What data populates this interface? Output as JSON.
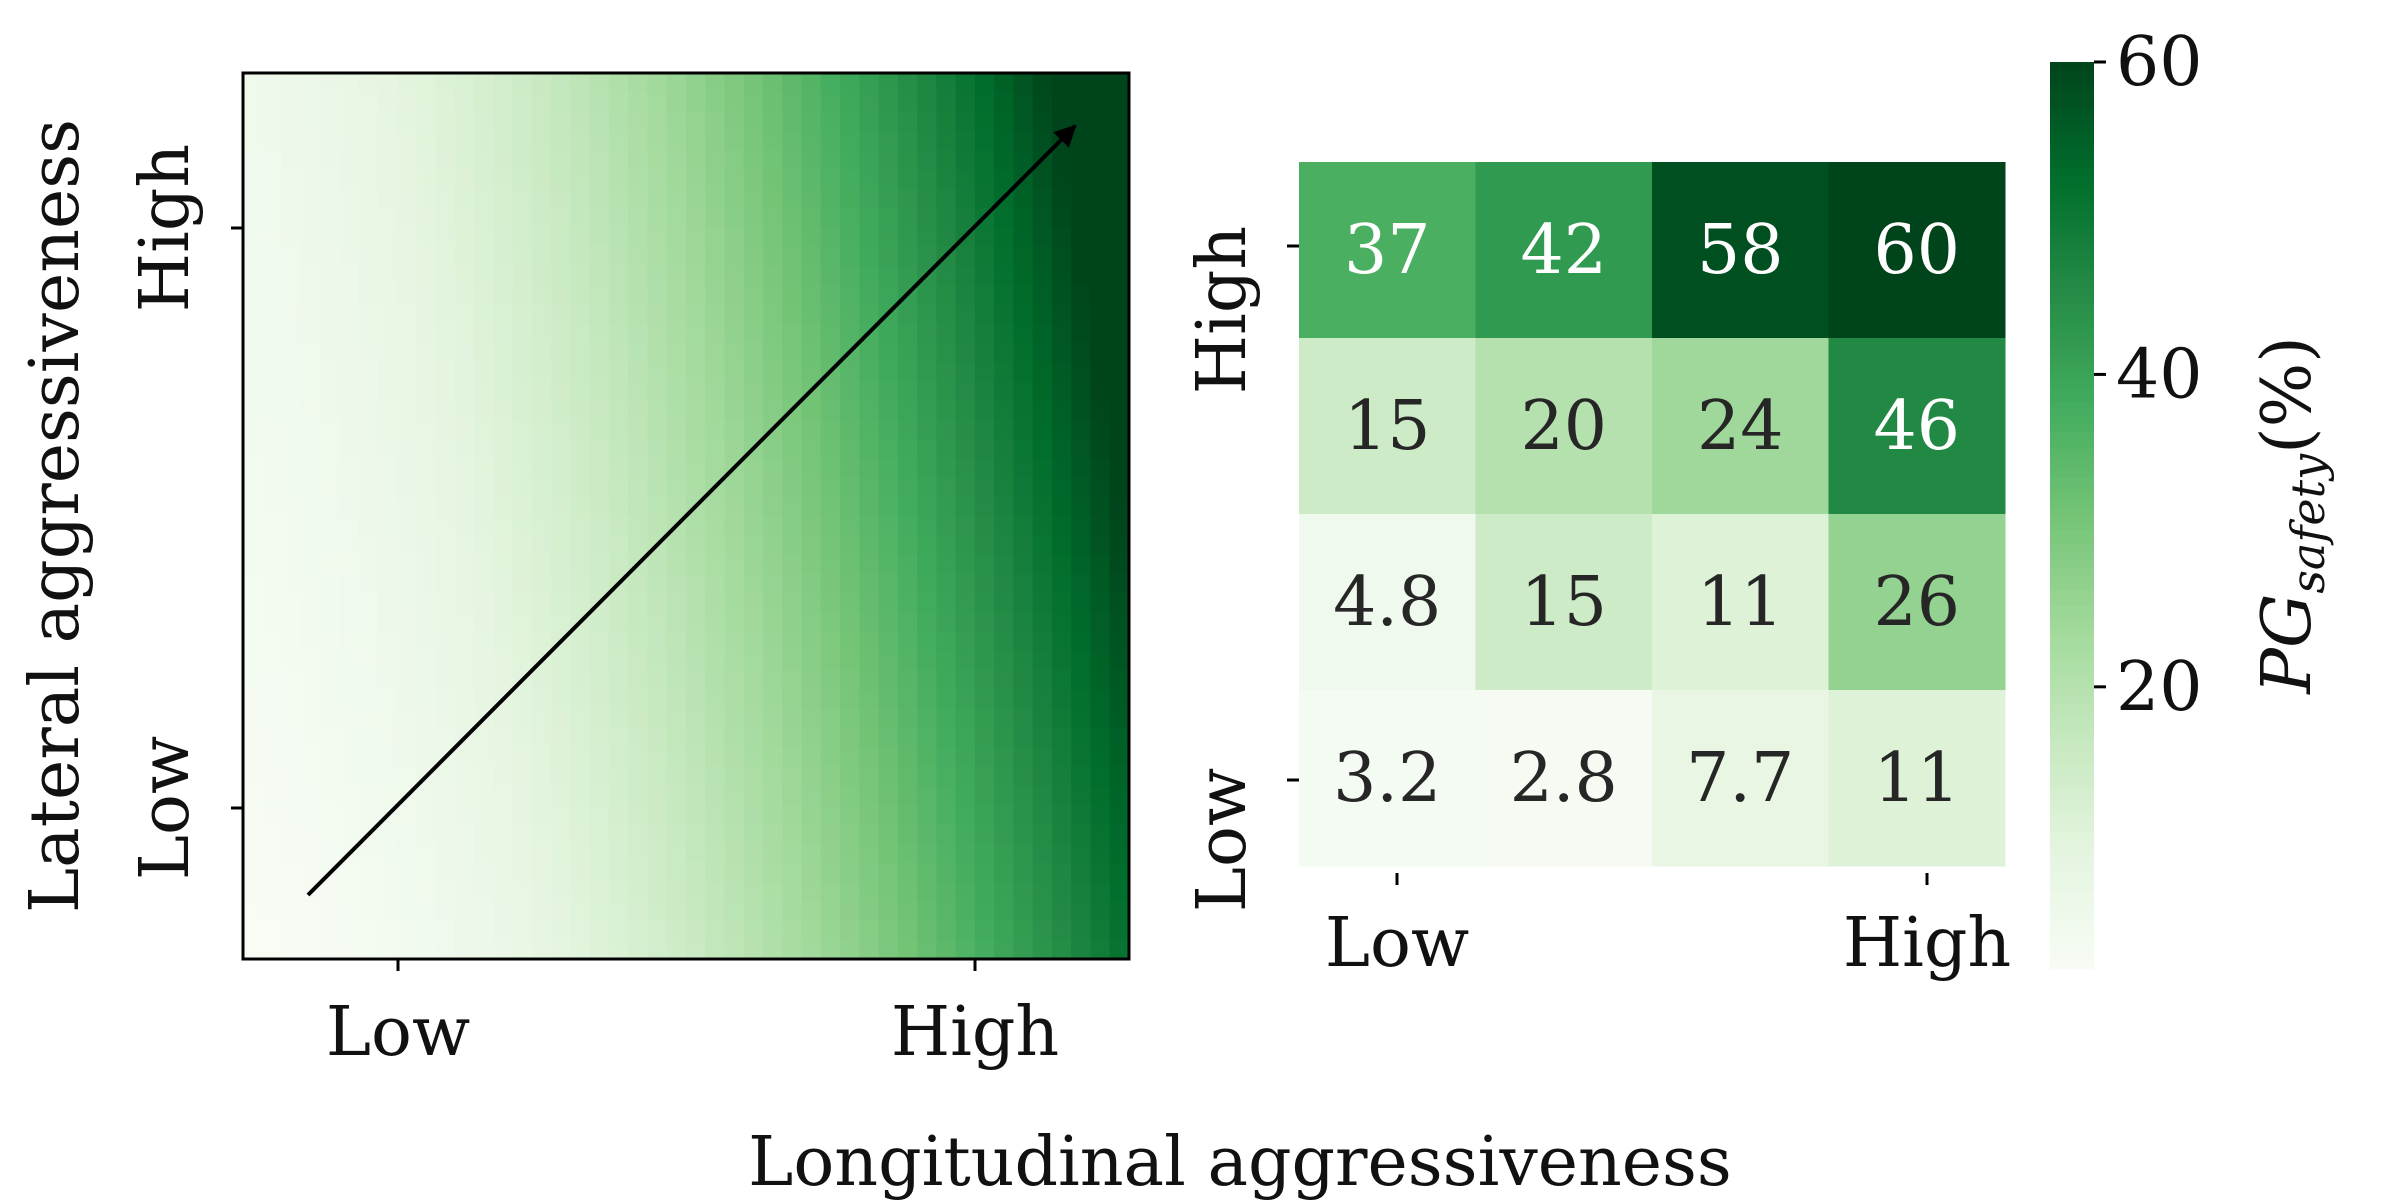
{
  "chart_data": [
    {
      "type": "heatmap",
      "subtype": "continuous-gradient",
      "xlabel": "Longitudinal aggressiveness",
      "ylabel": "Lateral aggressiveness",
      "x_tick_labels": [
        "Low",
        "High"
      ],
      "y_tick_labels": [
        "Low",
        "High"
      ],
      "colormap": "Greens",
      "annotation": "arrow pointing from low longitudinal / low lateral aggressiveness toward high longitudinal / high lateral aggressiveness"
    },
    {
      "type": "heatmap",
      "x_tick_labels": [
        "Low",
        "High"
      ],
      "y_tick_labels": [
        "High",
        "Low"
      ],
      "rows": [
        [
          37,
          42,
          58,
          60
        ],
        [
          15,
          20,
          24,
          46
        ],
        [
          4.8,
          15,
          11,
          26
        ],
        [
          3.2,
          2.8,
          7.7,
          11
        ]
      ],
      "cell_labels": [
        [
          "37",
          "42",
          "58",
          "60"
        ],
        [
          "15",
          "20",
          "24",
          "46"
        ],
        [
          "4.8",
          "15",
          "11",
          "26"
        ],
        [
          "3.2",
          "2.8",
          "7.7",
          "11"
        ]
      ],
      "colormap": "Greens",
      "colorbar": {
        "label": "PG",
        "label_subscript": "safety",
        "label_suffix": "(%)",
        "ticks": [
          "20",
          "40",
          "60"
        ],
        "tick_values": [
          20,
          40,
          60
        ],
        "range": [
          2,
          60
        ]
      }
    }
  ],
  "colors": {
    "greens_low": "#f7fcf5",
    "greens_high": "#00441b",
    "axis": "#000000",
    "arrow": "#000000",
    "dark_text": "#262626",
    "light_text": "#ffffff"
  }
}
